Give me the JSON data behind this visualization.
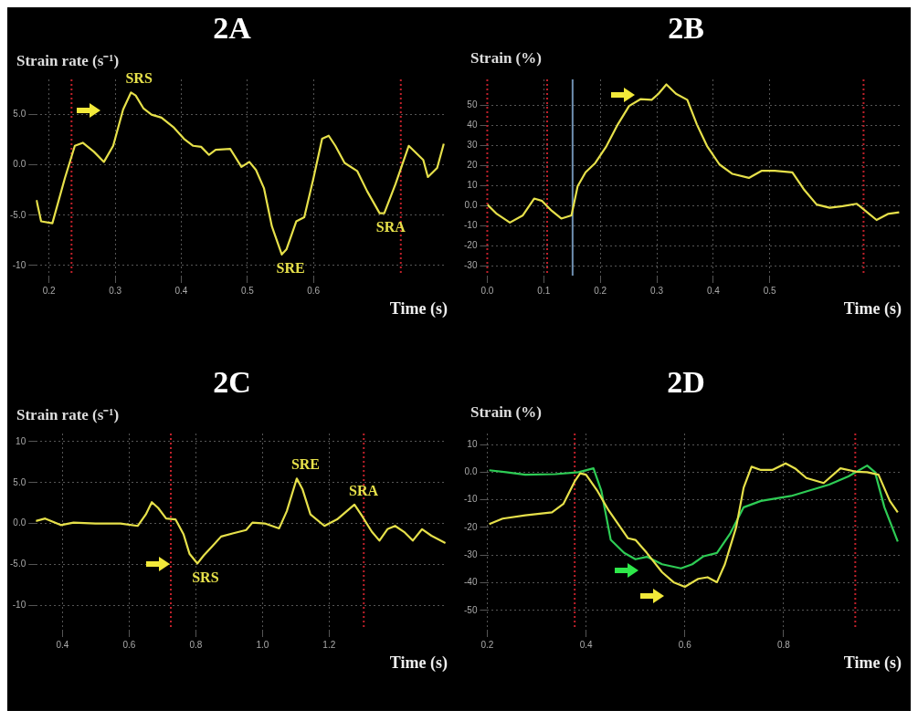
{
  "chart_data": [
    {
      "type": "line",
      "title": "2A",
      "ylabel": "Strain rate (s⁻¹)",
      "xlabel": "Time (s)",
      "marker": "none",
      "line_style": "solid",
      "grid": true,
      "xlim": [
        0.18,
        0.8
      ],
      "xticks": [
        0.2,
        0.3,
        0.4,
        0.5,
        0.6
      ],
      "ylim": [
        -11,
        8.5
      ],
      "yticks": [
        {
          "value": 5,
          "label": "5.0"
        },
        {
          "value": 0,
          "label": "0.0"
        },
        {
          "value": -5,
          "label": "-5.0"
        },
        -10
      ],
      "series": [
        {
          "color": "#e6e04a",
          "x": [
            0.181,
            0.188,
            0.205,
            0.224,
            0.239,
            0.251,
            0.268,
            0.283,
            0.297,
            0.312,
            0.324,
            0.331,
            0.343,
            0.355,
            0.37,
            0.389,
            0.404,
            0.418,
            0.43,
            0.442,
            0.452,
            0.474,
            0.491,
            0.503,
            0.513,
            0.525,
            0.537,
            0.552,
            0.559,
            0.574,
            0.586,
            0.6,
            0.613,
            0.623,
            0.633,
            0.647,
            0.666,
            0.681,
            0.7,
            0.707,
            0.724,
            0.744,
            0.766,
            0.773,
            0.787,
            0.797
          ],
          "values": [
            -3.5,
            -5.6,
            -5.8,
            -1.3,
            1.9,
            2.2,
            1.3,
            0.3,
            1.9,
            5.5,
            7.2,
            6.9,
            5.6,
            5.0,
            4.7,
            3.7,
            2.6,
            1.9,
            1.8,
            1.0,
            1.5,
            1.6,
            -0.2,
            0.3,
            -0.5,
            -2.3,
            -6.1,
            -8.9,
            -8.4,
            -5.6,
            -5.2,
            -1.3,
            2.6,
            2.9,
            1.9,
            0.2,
            -0.6,
            -2.6,
            -4.8,
            -4.8,
            -1.9,
            1.9,
            0.5,
            -1.2,
            -0.3,
            2.1
          ]
        }
      ],
      "ref_lines": [
        {
          "axis": "x",
          "value": 0.234,
          "color": "#c0202a",
          "line_style": "dotted"
        },
        {
          "axis": "x",
          "value": 0.732,
          "color": "#c0202a",
          "line_style": "dotted"
        }
      ],
      "annotations": [
        {
          "text": "SRS",
          "x": 0.324,
          "y": 7.2
        },
        {
          "text": "SRE",
          "x": 0.552,
          "y": -8.9
        },
        {
          "text": "SRA",
          "x": 0.703,
          "y": -4.8
        }
      ]
    },
    {
      "type": "line",
      "title": "2B",
      "ylabel": "Strain (%)",
      "xlabel": "Time (s)",
      "marker": "none",
      "line_style": "solid",
      "grid": true,
      "xlim": [
        0,
        0.73
      ],
      "xticks": [
        {
          "value": 0,
          "label": "0.0"
        },
        0.1,
        0.2,
        0.3,
        0.4,
        0.5
      ],
      "ylim": [
        -35,
        63
      ],
      "yticks": [
        50,
        40,
        30,
        20,
        10,
        {
          "value": 0,
          "label": "0.0"
        },
        -10,
        -20,
        -30
      ],
      "series": [
        {
          "color": "#e6e04a",
          "x": [
            0,
            0.017,
            0.04,
            0.063,
            0.083,
            0.097,
            0.114,
            0.131,
            0.149,
            0.16,
            0.174,
            0.191,
            0.211,
            0.231,
            0.251,
            0.271,
            0.291,
            0.303,
            0.317,
            0.334,
            0.354,
            0.371,
            0.389,
            0.411,
            0.434,
            0.463,
            0.486,
            0.509,
            0.54,
            0.56,
            0.583,
            0.606,
            0.629,
            0.654,
            0.669,
            0.689,
            0.709,
            0.729
          ],
          "values": [
            0.5,
            -4.2,
            -8.5,
            -4.9,
            3.5,
            2.3,
            -2.6,
            -6.5,
            -4.9,
            9.7,
            16.6,
            21.2,
            29.7,
            40.5,
            49.7,
            53.1,
            52.8,
            55.8,
            60.5,
            55.8,
            52.8,
            40.5,
            29.7,
            20.5,
            15.8,
            13.8,
            17.4,
            17.4,
            16.6,
            8.2,
            0.5,
            -1.1,
            -0.3,
            0.9,
            -2.6,
            -7.2,
            -4.2,
            -3.4
          ]
        }
      ],
      "ref_lines": [
        {
          "axis": "x",
          "value": 0.0,
          "color": "#c0202a",
          "line_style": "dotted"
        },
        {
          "axis": "x",
          "value": 0.106,
          "color": "#c0202a",
          "line_style": "dotted"
        },
        {
          "axis": "x",
          "value": 0.151,
          "color": "#6f8fb0",
          "line_style": "solid"
        },
        {
          "axis": "x",
          "value": 0.666,
          "color": "#c0202a",
          "line_style": "dotted"
        }
      ]
    },
    {
      "type": "line",
      "title": "2C",
      "ylabel": "Strain rate (s⁻¹)",
      "xlabel": "Time (s)",
      "marker": "none",
      "line_style": "solid",
      "grid": true,
      "xlim": [
        0.32,
        1.55
      ],
      "xticks": [
        0.4,
        0.6,
        0.8,
        {
          "value": 1,
          "label": "1.0"
        },
        1.2
      ],
      "ylim": [
        -13,
        11
      ],
      "yticks": [
        10,
        {
          "value": 5,
          "label": "5.0"
        },
        {
          "value": 0,
          "label": "0.0"
        },
        {
          "value": -5,
          "label": "-5.0"
        },
        -10
      ],
      "series": [
        {
          "color": "#e6e04a",
          "x": [
            0.32,
            0.348,
            0.395,
            0.433,
            0.499,
            0.574,
            0.626,
            0.65,
            0.668,
            0.687,
            0.711,
            0.739,
            0.763,
            0.781,
            0.805,
            0.824,
            0.847,
            0.876,
            0.913,
            0.951,
            0.97,
            1.007,
            1.05,
            1.073,
            1.103,
            1.12,
            1.144,
            1.186,
            1.224,
            1.276,
            1.299,
            1.328,
            1.351,
            1.375,
            1.398,
            1.427,
            1.451,
            1.479,
            1.507,
            1.549
          ],
          "values": [
            0.3,
            0.6,
            -0.2,
            0.1,
            0,
            0,
            -0.3,
            1.1,
            2.6,
            1.9,
            0.6,
            0.5,
            -1.3,
            -3.7,
            -4.9,
            -3.9,
            -2.9,
            -1.6,
            -1.2,
            -0.8,
            0.1,
            0,
            -0.6,
            1.5,
            5.5,
            4.2,
            1.1,
            -0.3,
            0.5,
            2.3,
            0.9,
            -1.0,
            -2.1,
            -0.7,
            -0.3,
            -1.1,
            -2.1,
            -0.7,
            -1.5,
            -2.4
          ]
        }
      ],
      "ref_lines": [
        {
          "axis": "x",
          "value": 0.725,
          "color": "#c0202a",
          "line_style": "dotted"
        },
        {
          "axis": "x",
          "value": 1.304,
          "color": "#c0202a",
          "line_style": "dotted"
        }
      ],
      "annotations": [
        {
          "text": "SRS",
          "x": 0.805,
          "y": -4.9
        },
        {
          "text": "SRE",
          "x": 1.103,
          "y": 5.5
        },
        {
          "text": "SRA",
          "x": 1.276,
          "y": 2.3
        }
      ]
    },
    {
      "type": "line",
      "title": "2D",
      "ylabel": "Strain (%)",
      "xlabel": "Time (s)",
      "marker": "none",
      "line_style": "solid",
      "grid": true,
      "xlim": [
        0.2,
        1.035
      ],
      "xticks": [
        0.2,
        0.4,
        0.6,
        0.8
      ],
      "ylim": [
        -57,
        14
      ],
      "yticks": [
        10,
        {
          "value": 0,
          "label": "0.0"
        },
        -10,
        -20,
        -30,
        -40,
        -50
      ],
      "series": [
        {
          "color": "#e6e04a",
          "x": [
            0.204,
            0.231,
            0.277,
            0.331,
            0.354,
            0.377,
            0.388,
            0.4,
            0.423,
            0.446,
            0.469,
            0.485,
            0.5,
            0.523,
            0.554,
            0.577,
            0.6,
            0.627,
            0.646,
            0.665,
            0.681,
            0.704,
            0.719,
            0.735,
            0.754,
            0.777,
            0.804,
            0.823,
            0.846,
            0.881,
            0.915,
            0.946,
            0.969,
            0.992,
            1.015,
            1.031
          ],
          "values": [
            -18.8,
            -16.8,
            -15.6,
            -14.5,
            -11.5,
            -3.3,
            -0.4,
            -0.9,
            -6.8,
            -13.9,
            -19.8,
            -23.9,
            -24.5,
            -29.2,
            -36.2,
            -39.8,
            -41.5,
            -38.6,
            -38.0,
            -39.8,
            -33.3,
            -19.8,
            -5.6,
            2.0,
            0.8,
            0.8,
            3.2,
            1.4,
            -2.1,
            -3.9,
            1.4,
            0.2,
            0,
            -0.9,
            -10.4,
            -14.5
          ]
        },
        {
          "color": "#2ecc55",
          "x": [
            0.204,
            0.238,
            0.277,
            0.338,
            0.385,
            0.415,
            0.431,
            0.45,
            0.477,
            0.5,
            0.523,
            0.554,
            0.592,
            0.615,
            0.638,
            0.665,
            0.692,
            0.719,
            0.754,
            0.815,
            0.892,
            0.931,
            0.969,
            0.985,
            1.004,
            1.031
          ],
          "values": [
            0.7,
            0,
            -0.9,
            -0.7,
            0,
            1.4,
            -6.8,
            -24.5,
            -29.2,
            -31.5,
            -30.6,
            -33.3,
            -34.8,
            -33.3,
            -30.4,
            -29.2,
            -22.1,
            -12.7,
            -10.4,
            -8.6,
            -4.5,
            -1.5,
            2.4,
            0,
            -12.7,
            -25.1
          ]
        }
      ],
      "ref_lines": [
        {
          "axis": "x",
          "value": 0.377,
          "color": "#c0202a",
          "line_style": "dotted"
        },
        {
          "axis": "x",
          "value": 0.945,
          "color": "#c0202a",
          "line_style": "dotted"
        }
      ]
    }
  ]
}
